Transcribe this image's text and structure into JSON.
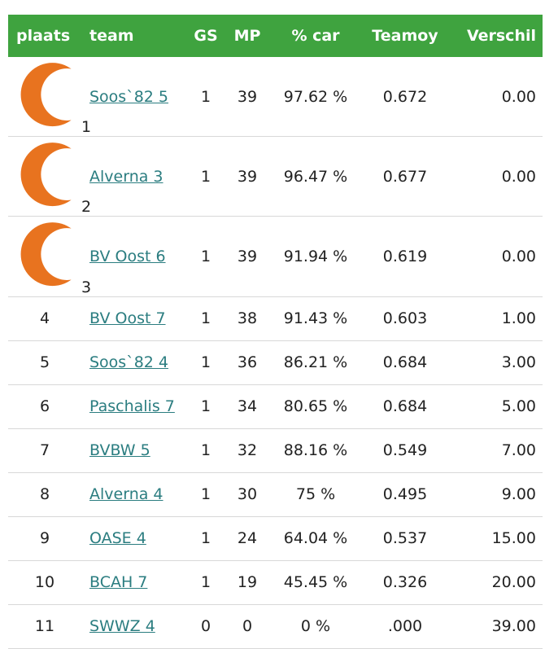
{
  "table": {
    "header": [
      "plaats",
      "team",
      "GS",
      "MP",
      "% car",
      "Teamoy",
      "Verschil"
    ],
    "rows": [
      [
        "1",
        "Soos`82 5",
        "1",
        "39",
        "97.62 %",
        "0.672",
        "0.00"
      ],
      [
        "2",
        "Alverna 3",
        "1",
        "39",
        "96.47 %",
        "0.677",
        "0.00"
      ],
      [
        "3",
        "BV Oost 6",
        "1",
        "39",
        "91.94 %",
        "0.619",
        "0.00"
      ],
      [
        "4",
        "BV Oost 7",
        "1",
        "38",
        "91.43 %",
        "0.603",
        "1.00"
      ],
      [
        "5",
        "Soos`82 4",
        "1",
        "36",
        "86.21 %",
        "0.684",
        "3.00"
      ],
      [
        "6",
        "Paschalis 7",
        "1",
        "34",
        "80.65 %",
        "0.684",
        "5.00"
      ],
      [
        "7",
        "BVBW 5",
        "1",
        "32",
        "88.16 %",
        "0.549",
        "7.00"
      ],
      [
        "8",
        "Alverna 4",
        "1",
        "30",
        "75 %",
        "0.495",
        "9.00"
      ],
      [
        "9",
        "OASE 4",
        "1",
        "24",
        "64.04 %",
        "0.537",
        "15.00"
      ],
      [
        "10",
        "BCAH 7",
        "1",
        "19",
        "45.45 %",
        "0.326",
        "20.00"
      ],
      [
        "11",
        "SWWZ 4",
        "0",
        "0",
        "0 %",
        ".000",
        "39.00"
      ]
    ]
  }
}
